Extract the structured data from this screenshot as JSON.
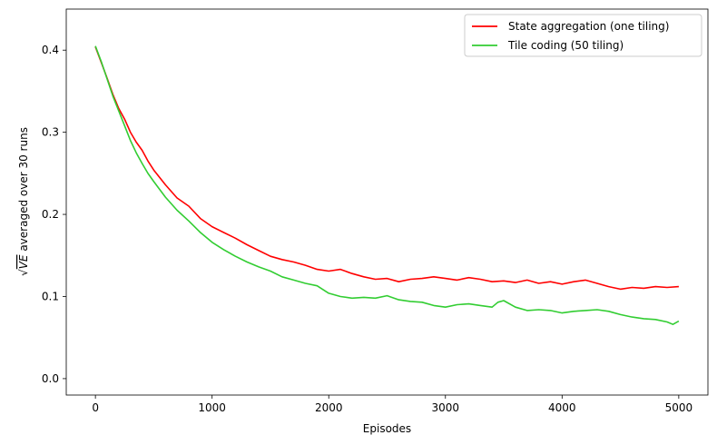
{
  "chart_data": {
    "type": "line",
    "xlabel": "Episodes",
    "ylabel_prefix": "VE",
    "ylabel_suffix": " averaged over 30 runs",
    "xlim": [
      -250,
      5250
    ],
    "ylim": [
      -0.02,
      0.45
    ],
    "xticks": [
      0,
      1000,
      2000,
      3000,
      4000,
      5000
    ],
    "xtick_labels": [
      "0",
      "1000",
      "2000",
      "3000",
      "4000",
      "5000"
    ],
    "yticks": [
      0.0,
      0.1,
      0.2,
      0.3,
      0.4
    ],
    "ytick_labels": [
      "0.0",
      "0.1",
      "0.2",
      "0.3",
      "0.4"
    ],
    "grid": false,
    "legend_position": "top-right",
    "series": [
      {
        "name": "State aggregation (one tiling)",
        "color": "#ff0000",
        "x": [
          0,
          50,
          100,
          150,
          200,
          250,
          300,
          350,
          400,
          450,
          500,
          600,
          700,
          800,
          900,
          1000,
          1100,
          1200,
          1300,
          1400,
          1500,
          1600,
          1700,
          1800,
          1900,
          2000,
          2100,
          2200,
          2300,
          2400,
          2500,
          2600,
          2700,
          2800,
          2900,
          3000,
          3100,
          3200,
          3300,
          3400,
          3500,
          3600,
          3700,
          3800,
          3900,
          4000,
          4100,
          4200,
          4300,
          4400,
          4500,
          4600,
          4700,
          4800,
          4900,
          5000
        ],
        "y": [
          0.404,
          0.385,
          0.366,
          0.346,
          0.329,
          0.316,
          0.3,
          0.288,
          0.278,
          0.265,
          0.254,
          0.236,
          0.22,
          0.21,
          0.195,
          0.185,
          0.178,
          0.171,
          0.163,
          0.156,
          0.149,
          0.145,
          0.142,
          0.138,
          0.133,
          0.131,
          0.133,
          0.128,
          0.124,
          0.121,
          0.122,
          0.118,
          0.121,
          0.122,
          0.124,
          0.122,
          0.12,
          0.123,
          0.121,
          0.118,
          0.119,
          0.117,
          0.12,
          0.116,
          0.118,
          0.115,
          0.118,
          0.12,
          0.116,
          0.112,
          0.109,
          0.111,
          0.11,
          0.112,
          0.111,
          0.112
        ]
      },
      {
        "name": "Tile coding (50 tiling)",
        "color": "#32cd32",
        "x": [
          0,
          50,
          100,
          150,
          200,
          250,
          300,
          350,
          400,
          450,
          500,
          600,
          700,
          800,
          900,
          1000,
          1100,
          1200,
          1300,
          1400,
          1500,
          1600,
          1700,
          1800,
          1900,
          2000,
          2100,
          2200,
          2300,
          2400,
          2500,
          2600,
          2700,
          2800,
          2900,
          3000,
          3100,
          3200,
          3300,
          3400,
          3450,
          3500,
          3600,
          3700,
          3800,
          3900,
          4000,
          4100,
          4200,
          4300,
          4400,
          4500,
          4600,
          4700,
          4800,
          4900,
          4950,
          5000
        ],
        "y": [
          0.405,
          0.386,
          0.365,
          0.344,
          0.326,
          0.308,
          0.29,
          0.275,
          0.262,
          0.25,
          0.24,
          0.221,
          0.205,
          0.192,
          0.178,
          0.166,
          0.157,
          0.149,
          0.142,
          0.136,
          0.131,
          0.124,
          0.12,
          0.116,
          0.113,
          0.104,
          0.1,
          0.098,
          0.099,
          0.098,
          0.101,
          0.096,
          0.094,
          0.093,
          0.089,
          0.087,
          0.09,
          0.091,
          0.089,
          0.087,
          0.093,
          0.095,
          0.087,
          0.083,
          0.084,
          0.083,
          0.08,
          0.082,
          0.083,
          0.084,
          0.082,
          0.078,
          0.075,
          0.073,
          0.072,
          0.069,
          0.066,
          0.07
        ]
      }
    ]
  }
}
